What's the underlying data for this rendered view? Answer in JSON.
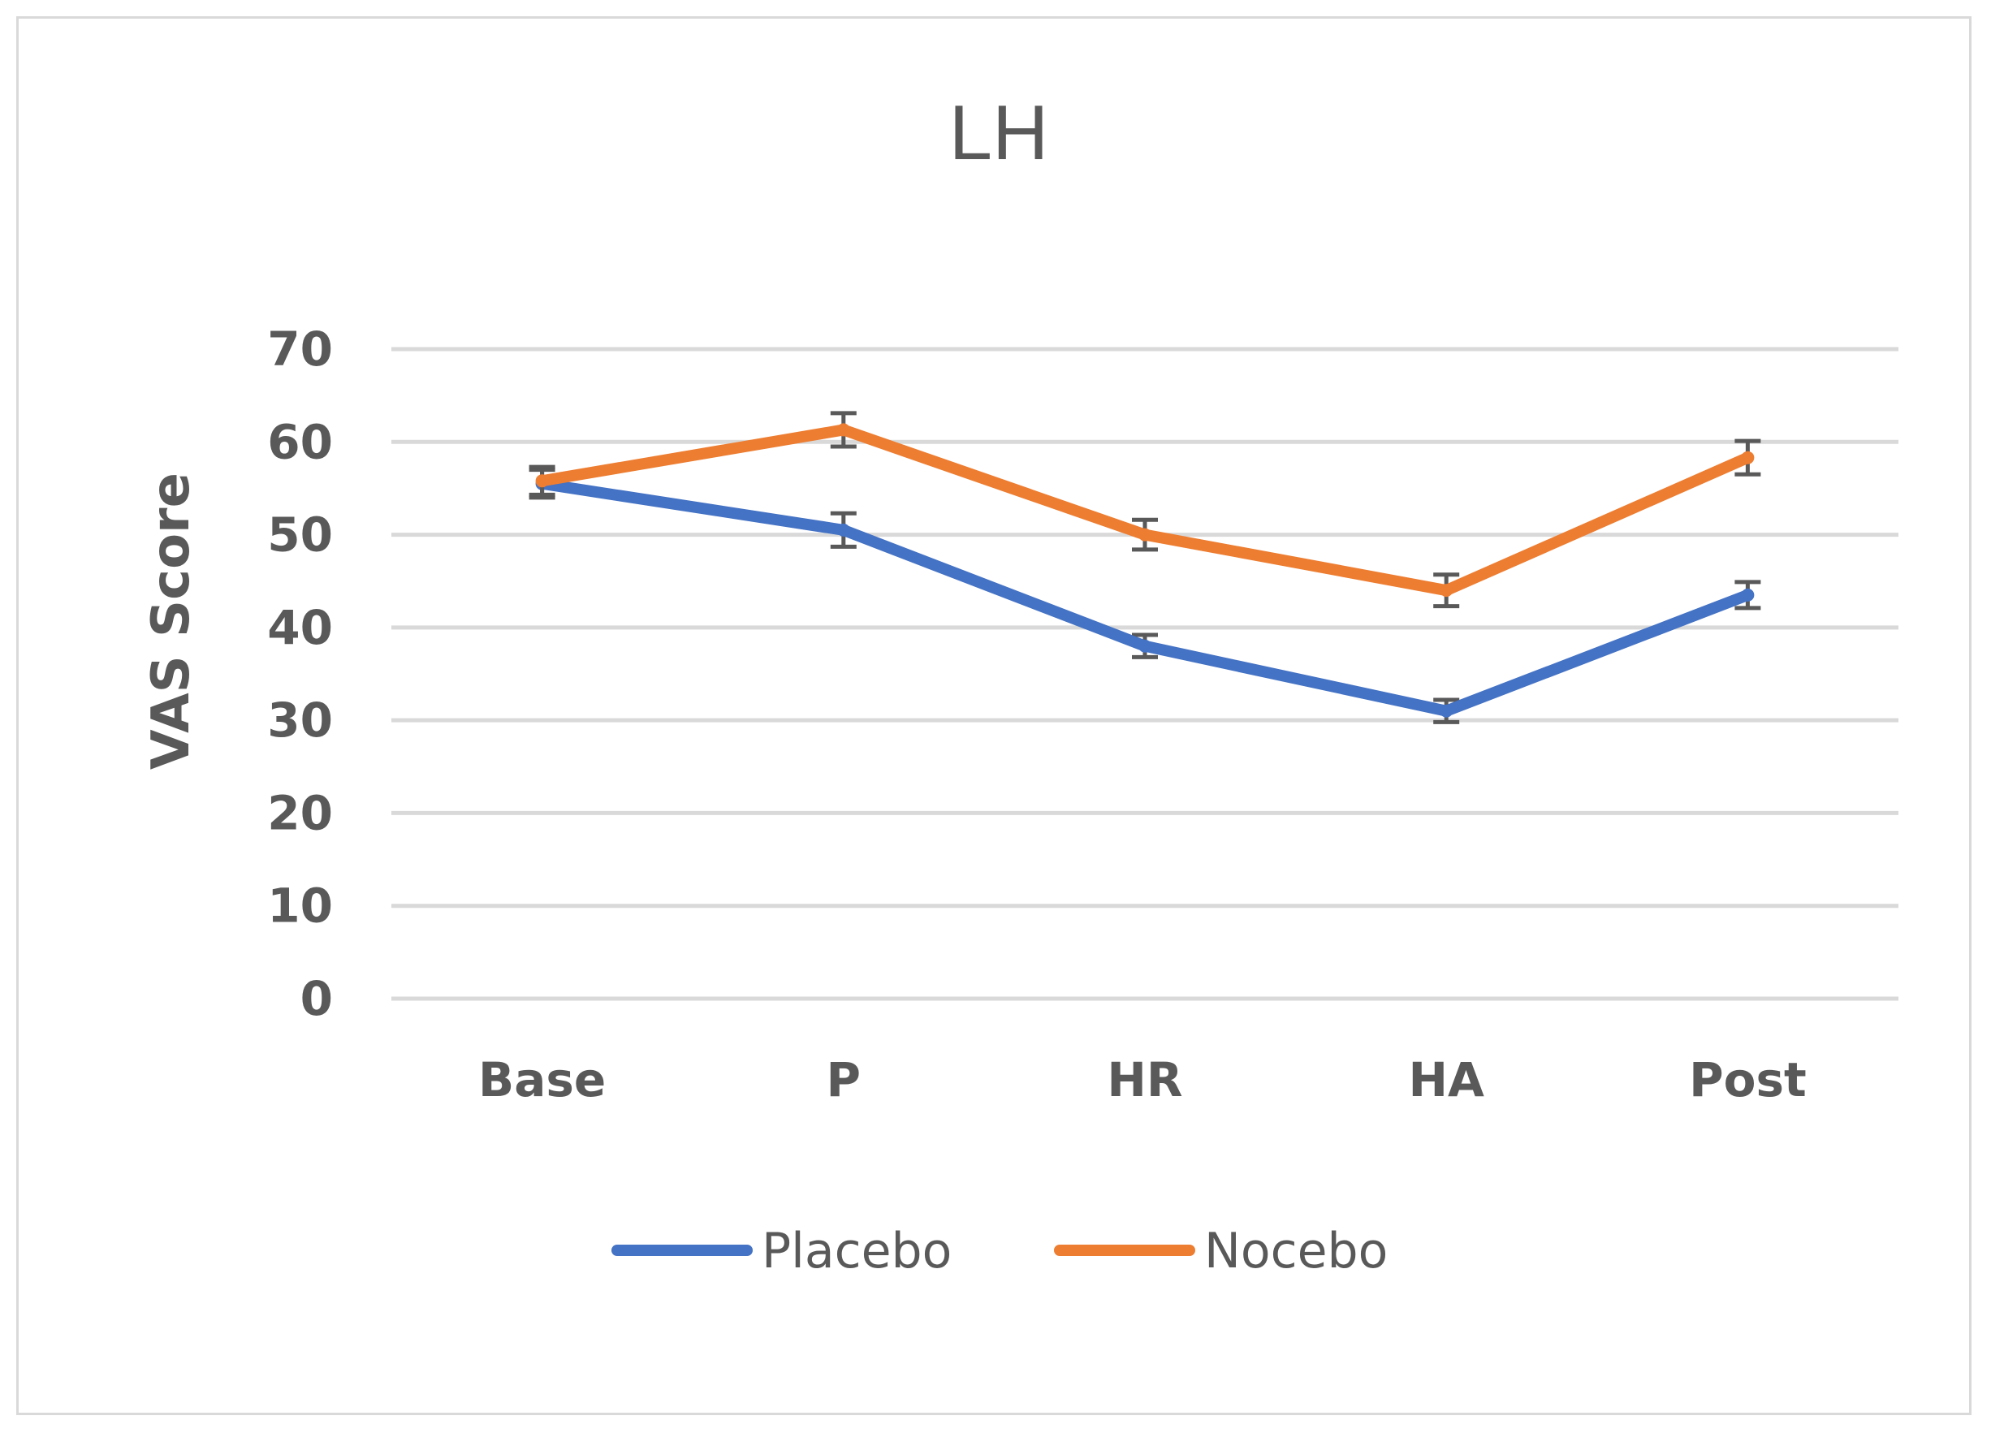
{
  "chart_data": {
    "type": "line",
    "title": "LH",
    "xlabel": "",
    "ylabel": "VAS Score",
    "categories": [
      "Base",
      "P",
      "HR",
      "HA",
      "Post"
    ],
    "ylim": [
      0,
      70
    ],
    "yticks": [
      0,
      10,
      20,
      30,
      40,
      50,
      60,
      70
    ],
    "grid": true,
    "legend_position": "bottom",
    "series": [
      {
        "name": "Placebo",
        "color": "#4472c4",
        "values": [
          55.5,
          50.5,
          38,
          31,
          43.5
        ],
        "error": [
          1.5,
          1.8,
          1.2,
          1.2,
          1.4
        ]
      },
      {
        "name": "Nocebo",
        "color": "#ed7d31",
        "values": [
          55.8,
          61.3,
          50,
          44,
          58.3
        ],
        "error": [
          1.5,
          1.8,
          1.6,
          1.7,
          1.8
        ]
      }
    ]
  }
}
